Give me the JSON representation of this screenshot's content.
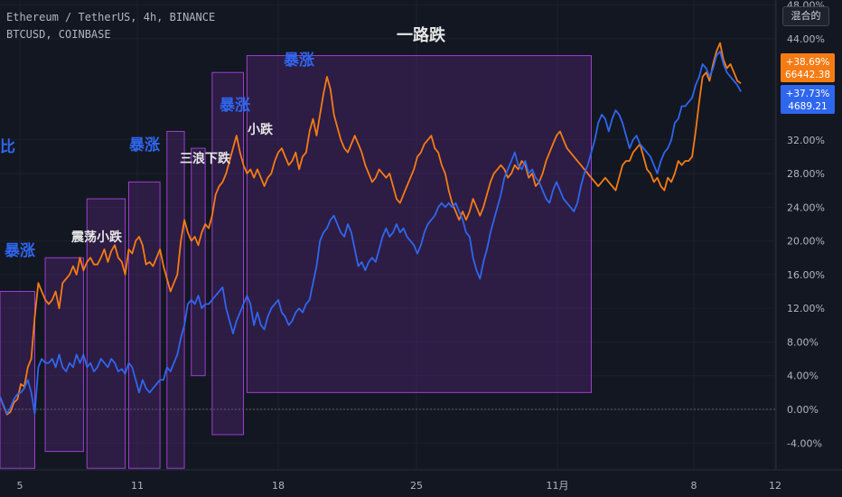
{
  "header": {
    "symbol_main": "Ethereum / TetherUS, 4h, BINANCE",
    "symbol_compare": "BTCUSD, COINBASE"
  },
  "scale_button": "混合的",
  "colors": {
    "background": "#131722",
    "eth": "#f57c14",
    "btc": "#2f66ee",
    "box_stroke": "#9c3fd0",
    "box_fill": "rgba(105,40,150,0.30)",
    "label_blue": "#2f66ee",
    "label_white": "#e6e6e6"
  },
  "chart_data": {
    "type": "line",
    "xlabel": "",
    "ylabel": "",
    "x_ticks": [
      "5",
      "11",
      "18",
      "25",
      "11月",
      "8",
      "12"
    ],
    "y_ticks": [
      "48.00%",
      "44.00%",
      "32.00%",
      "28.00%",
      "24.00%",
      "20.00%",
      "16.00%",
      "12.00%",
      "8.00%",
      "4.00%",
      "0.00%",
      "-4.00%"
    ],
    "ylim": [
      -5,
      48
    ],
    "series": [
      {
        "name": "Ethereum / TetherUS",
        "color": "#f57c14",
        "last_value": "66442.38",
        "last_change": "+38.69%",
        "values": [
          1.5,
          0.4,
          -0.6,
          -0.3,
          0.8,
          1.2,
          3.0,
          2.7,
          5.0,
          6.0,
          11.0,
          15.0,
          14.0,
          13.0,
          12.5,
          13.0,
          14.0,
          12.0,
          15.0,
          15.5,
          16.0,
          17.0,
          16.0,
          18.0,
          16.5,
          17.5,
          18.0,
          17.2,
          17.2,
          18.0,
          19.0,
          17.5,
          18.8,
          19.5,
          18.0,
          17.5,
          16.0,
          19.0,
          18.5,
          20.0,
          20.5,
          19.5,
          17.2,
          17.5,
          17.0,
          18.0,
          19.0,
          17.0,
          15.5,
          14.0,
          15.0,
          16.0,
          20.0,
          22.5,
          21.0,
          20.0,
          20.5,
          19.5,
          21.0,
          22.0,
          21.5,
          23.0,
          25.5,
          26.5,
          27.0,
          28.0,
          29.5,
          31.0,
          32.5,
          30.5,
          29.0,
          28.0,
          28.5,
          27.5,
          28.5,
          27.5,
          26.5,
          27.5,
          28.0,
          29.5,
          30.5,
          31.0,
          30.0,
          29.0,
          29.5,
          30.5,
          28.5,
          30.0,
          30.5,
          33.0,
          34.5,
          32.5,
          35.0,
          37.5,
          39.5,
          38.0,
          35.0,
          33.5,
          32.0,
          31.0,
          30.5,
          31.5,
          32.5,
          31.5,
          30.5,
          29.0,
          28.0,
          27.0,
          27.5,
          28.5,
          28.0,
          27.5,
          28.0,
          26.5,
          25.0,
          24.5,
          25.5,
          26.5,
          27.5,
          28.5,
          30.0,
          30.5,
          31.5,
          32.0,
          32.5,
          31.0,
          30.5,
          29.0,
          28.0,
          26.0,
          24.5,
          23.5,
          22.5,
          23.5,
          22.5,
          23.5,
          25.0,
          24.0,
          23.0,
          24.0,
          25.5,
          27.0,
          28.0,
          28.5,
          29.0,
          28.5,
          27.5,
          28.0,
          29.0,
          28.5,
          29.5,
          29.0,
          27.5,
          28.0,
          26.5,
          27.0,
          28.0,
          29.5,
          30.5,
          31.5,
          32.5,
          33.0,
          32.0,
          31.0,
          30.5,
          30.0,
          29.5,
          29.0,
          28.5,
          28.0,
          27.5,
          27.0,
          26.5,
          27.0,
          27.5,
          27.0,
          26.5,
          26.0,
          27.5,
          29.0,
          29.5,
          29.5,
          30.5,
          31.0,
          31.5,
          30.0,
          28.5,
          28.0,
          27.0,
          27.5,
          26.5,
          26.0,
          27.5,
          27.0,
          28.0,
          29.5,
          29.0,
          29.5,
          29.5,
          30.0,
          33.0,
          36.5,
          39.5,
          40.0,
          39.0,
          41.0,
          42.5,
          43.5,
          41.5,
          40.5,
          41.0,
          40.0,
          39.0,
          38.7
        ]
      },
      {
        "name": "BTCUSD, COINBASE",
        "color": "#2f66ee",
        "last_value": "4689.21",
        "last_change": "+37.73%",
        "values": [
          1.5,
          0.5,
          -0.5,
          0.2,
          1.2,
          1.8,
          2.0,
          2.5,
          3.5,
          2.0,
          -0.5,
          5.0,
          6.0,
          5.5,
          5.5,
          6.0,
          5.0,
          6.5,
          5.0,
          4.5,
          5.5,
          5.0,
          6.5,
          5.5,
          6.5,
          5.0,
          5.5,
          4.5,
          5.0,
          6.0,
          5.5,
          5.0,
          6.0,
          5.5,
          4.5,
          4.8,
          4.2,
          5.5,
          5.0,
          3.5,
          2.0,
          3.5,
          2.5,
          2.0,
          2.5,
          3.0,
          3.5,
          3.5,
          5.0,
          4.5,
          5.5,
          6.5,
          8.5,
          10.0,
          12.5,
          13.0,
          12.5,
          13.5,
          12.0,
          12.5,
          12.5,
          13.0,
          13.5,
          14.0,
          14.5,
          12.0,
          10.5,
          9.0,
          10.5,
          11.5,
          12.5,
          13.5,
          12.5,
          10.0,
          11.5,
          10.0,
          9.5,
          11.0,
          12.0,
          12.5,
          13.0,
          11.5,
          11.0,
          10.0,
          10.5,
          11.5,
          12.0,
          11.5,
          12.5,
          13.0,
          15.0,
          17.0,
          20.0,
          21.0,
          21.5,
          22.5,
          23.0,
          22.0,
          21.0,
          20.5,
          22.0,
          21.0,
          19.0,
          17.0,
          17.5,
          16.5,
          17.5,
          18.0,
          17.5,
          19.0,
          20.5,
          21.5,
          20.5,
          21.0,
          22.0,
          21.0,
          21.5,
          20.5,
          20.0,
          19.5,
          18.5,
          19.5,
          21.0,
          22.0,
          22.5,
          23.0,
          24.0,
          24.5,
          24.0,
          24.5,
          24.0,
          24.5,
          23.5,
          22.5,
          21.0,
          20.5,
          18.0,
          16.5,
          15.5,
          17.5,
          19.0,
          21.0,
          22.5,
          24.0,
          25.5,
          27.5,
          28.5,
          29.5,
          30.5,
          29.0,
          28.5,
          29.5,
          28.0,
          28.5,
          27.5,
          27.0,
          26.0,
          25.0,
          24.5,
          26.0,
          27.0,
          26.0,
          25.0,
          24.5,
          24.0,
          23.5,
          24.5,
          26.5,
          28.0,
          29.0,
          30.5,
          32.0,
          34.0,
          35.0,
          34.5,
          33.0,
          34.5,
          35.5,
          35.0,
          34.0,
          32.5,
          31.0,
          32.0,
          32.5,
          31.5,
          31.0,
          30.5,
          30.0,
          29.0,
          28.0,
          29.5,
          30.5,
          31.0,
          32.0,
          34.0,
          34.5,
          36.0,
          36.0,
          36.5,
          37.0,
          38.5,
          39.5,
          41.0,
          40.5,
          39.5,
          40.5,
          42.0,
          42.5,
          41.0,
          40.0,
          39.5,
          39.0,
          38.5,
          37.73
        ]
      }
    ],
    "annotations": [
      {
        "text": "比",
        "color": "blue"
      },
      {
        "text": "暴涨",
        "color": "blue"
      },
      {
        "text": "震荡小跌",
        "color": "white"
      },
      {
        "text": "暴涨",
        "color": "blue"
      },
      {
        "text": "三浪下跌",
        "color": "white"
      },
      {
        "text": "暴涨",
        "color": "blue"
      },
      {
        "text": "小跌",
        "color": "white"
      },
      {
        "text": "暴涨",
        "color": "blue"
      },
      {
        "text": "一路跌",
        "color": "white"
      }
    ],
    "regions": [
      {
        "x_range": [
          0,
          10
        ],
        "y_range": [
          -7,
          14
        ]
      },
      {
        "x_range": [
          13,
          24
        ],
        "y_range": [
          -5,
          18
        ]
      },
      {
        "x_range": [
          25,
          36
        ],
        "y_range": [
          -7,
          25
        ]
      },
      {
        "x_range": [
          37,
          46
        ],
        "y_range": [
          -7,
          27
        ]
      },
      {
        "x_range": [
          48,
          53
        ],
        "y_range": [
          -7,
          33
        ]
      },
      {
        "x_range": [
          55,
          59
        ],
        "y_range": [
          4,
          31
        ]
      },
      {
        "x_range": [
          61,
          70
        ],
        "y_range": [
          -3,
          40
        ]
      },
      {
        "x_range": [
          71,
          170
        ],
        "y_range": [
          2,
          42
        ]
      }
    ]
  }
}
